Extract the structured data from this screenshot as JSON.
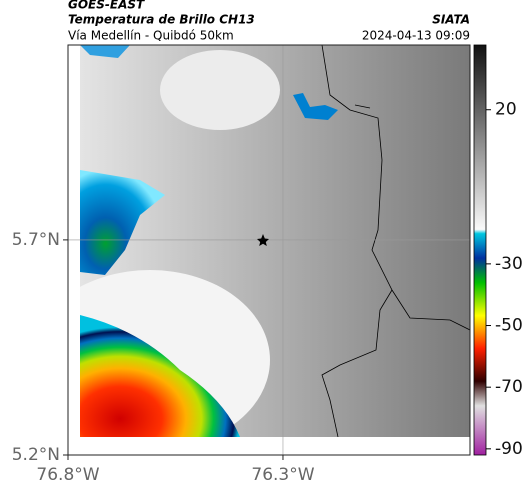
{
  "header": {
    "satellite": "GOES-EAST",
    "title": "Temperatura de Brillo CH13",
    "source": "SIATA",
    "subtitle": "Vía Medellín - Quibdó 50km",
    "datetime": "2024-04-13 09:09"
  },
  "map": {
    "xlim": [
      -76.8,
      -75.865
    ],
    "ylim": [
      5.2,
      6.153
    ],
    "xticks": [
      {
        "value": -76.8,
        "label": "76.8°W"
      },
      {
        "value": -76.3,
        "label": "76.3°W"
      }
    ],
    "yticks": [
      {
        "value": 5.2,
        "label": "5.2°N"
      },
      {
        "value": 5.7,
        "label": "5.7°N"
      }
    ],
    "grid": true
  },
  "colorbar": {
    "lim": [
      -92,
      41
    ],
    "ticks": [
      20,
      -30,
      -50,
      -70,
      -90
    ]
  }
}
